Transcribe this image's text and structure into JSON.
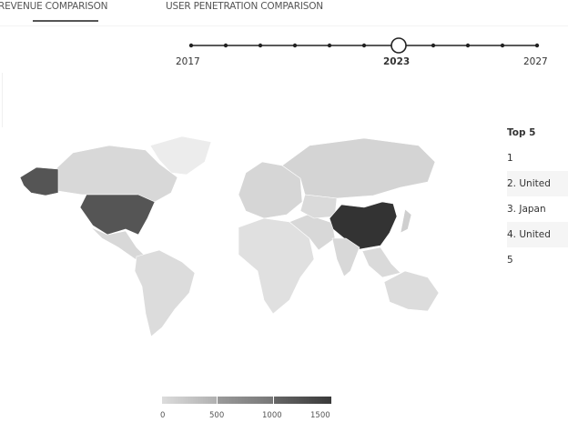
{
  "tabs": [
    {
      "label": "REVENUE COMPARISON",
      "active": true
    },
    {
      "label": "USER PENETRATION COMPARISON",
      "active": false
    }
  ],
  "timeline": {
    "years": [
      2017,
      2018,
      2019,
      2020,
      2021,
      2022,
      2023,
      2024,
      2025,
      2026,
      2027
    ],
    "labels": {
      "start": "2017",
      "selected": "2023",
      "end": "2027"
    },
    "selected": 2023
  },
  "top5": {
    "title": "Top 5",
    "items": [
      "1",
      "2. United",
      "3. Japan",
      "4. United",
      "5"
    ]
  },
  "legend": {
    "ticks": [
      "0",
      "500",
      "1000",
      "1500"
    ],
    "colors": [
      "#d0d0d0",
      "#8a8a8a",
      "#555555"
    ]
  },
  "map": {
    "highlighted": [
      {
        "region": "United States",
        "color": "#555555"
      },
      {
        "region": "China",
        "color": "#333333"
      }
    ],
    "base_color": "#dcdcdc"
  }
}
